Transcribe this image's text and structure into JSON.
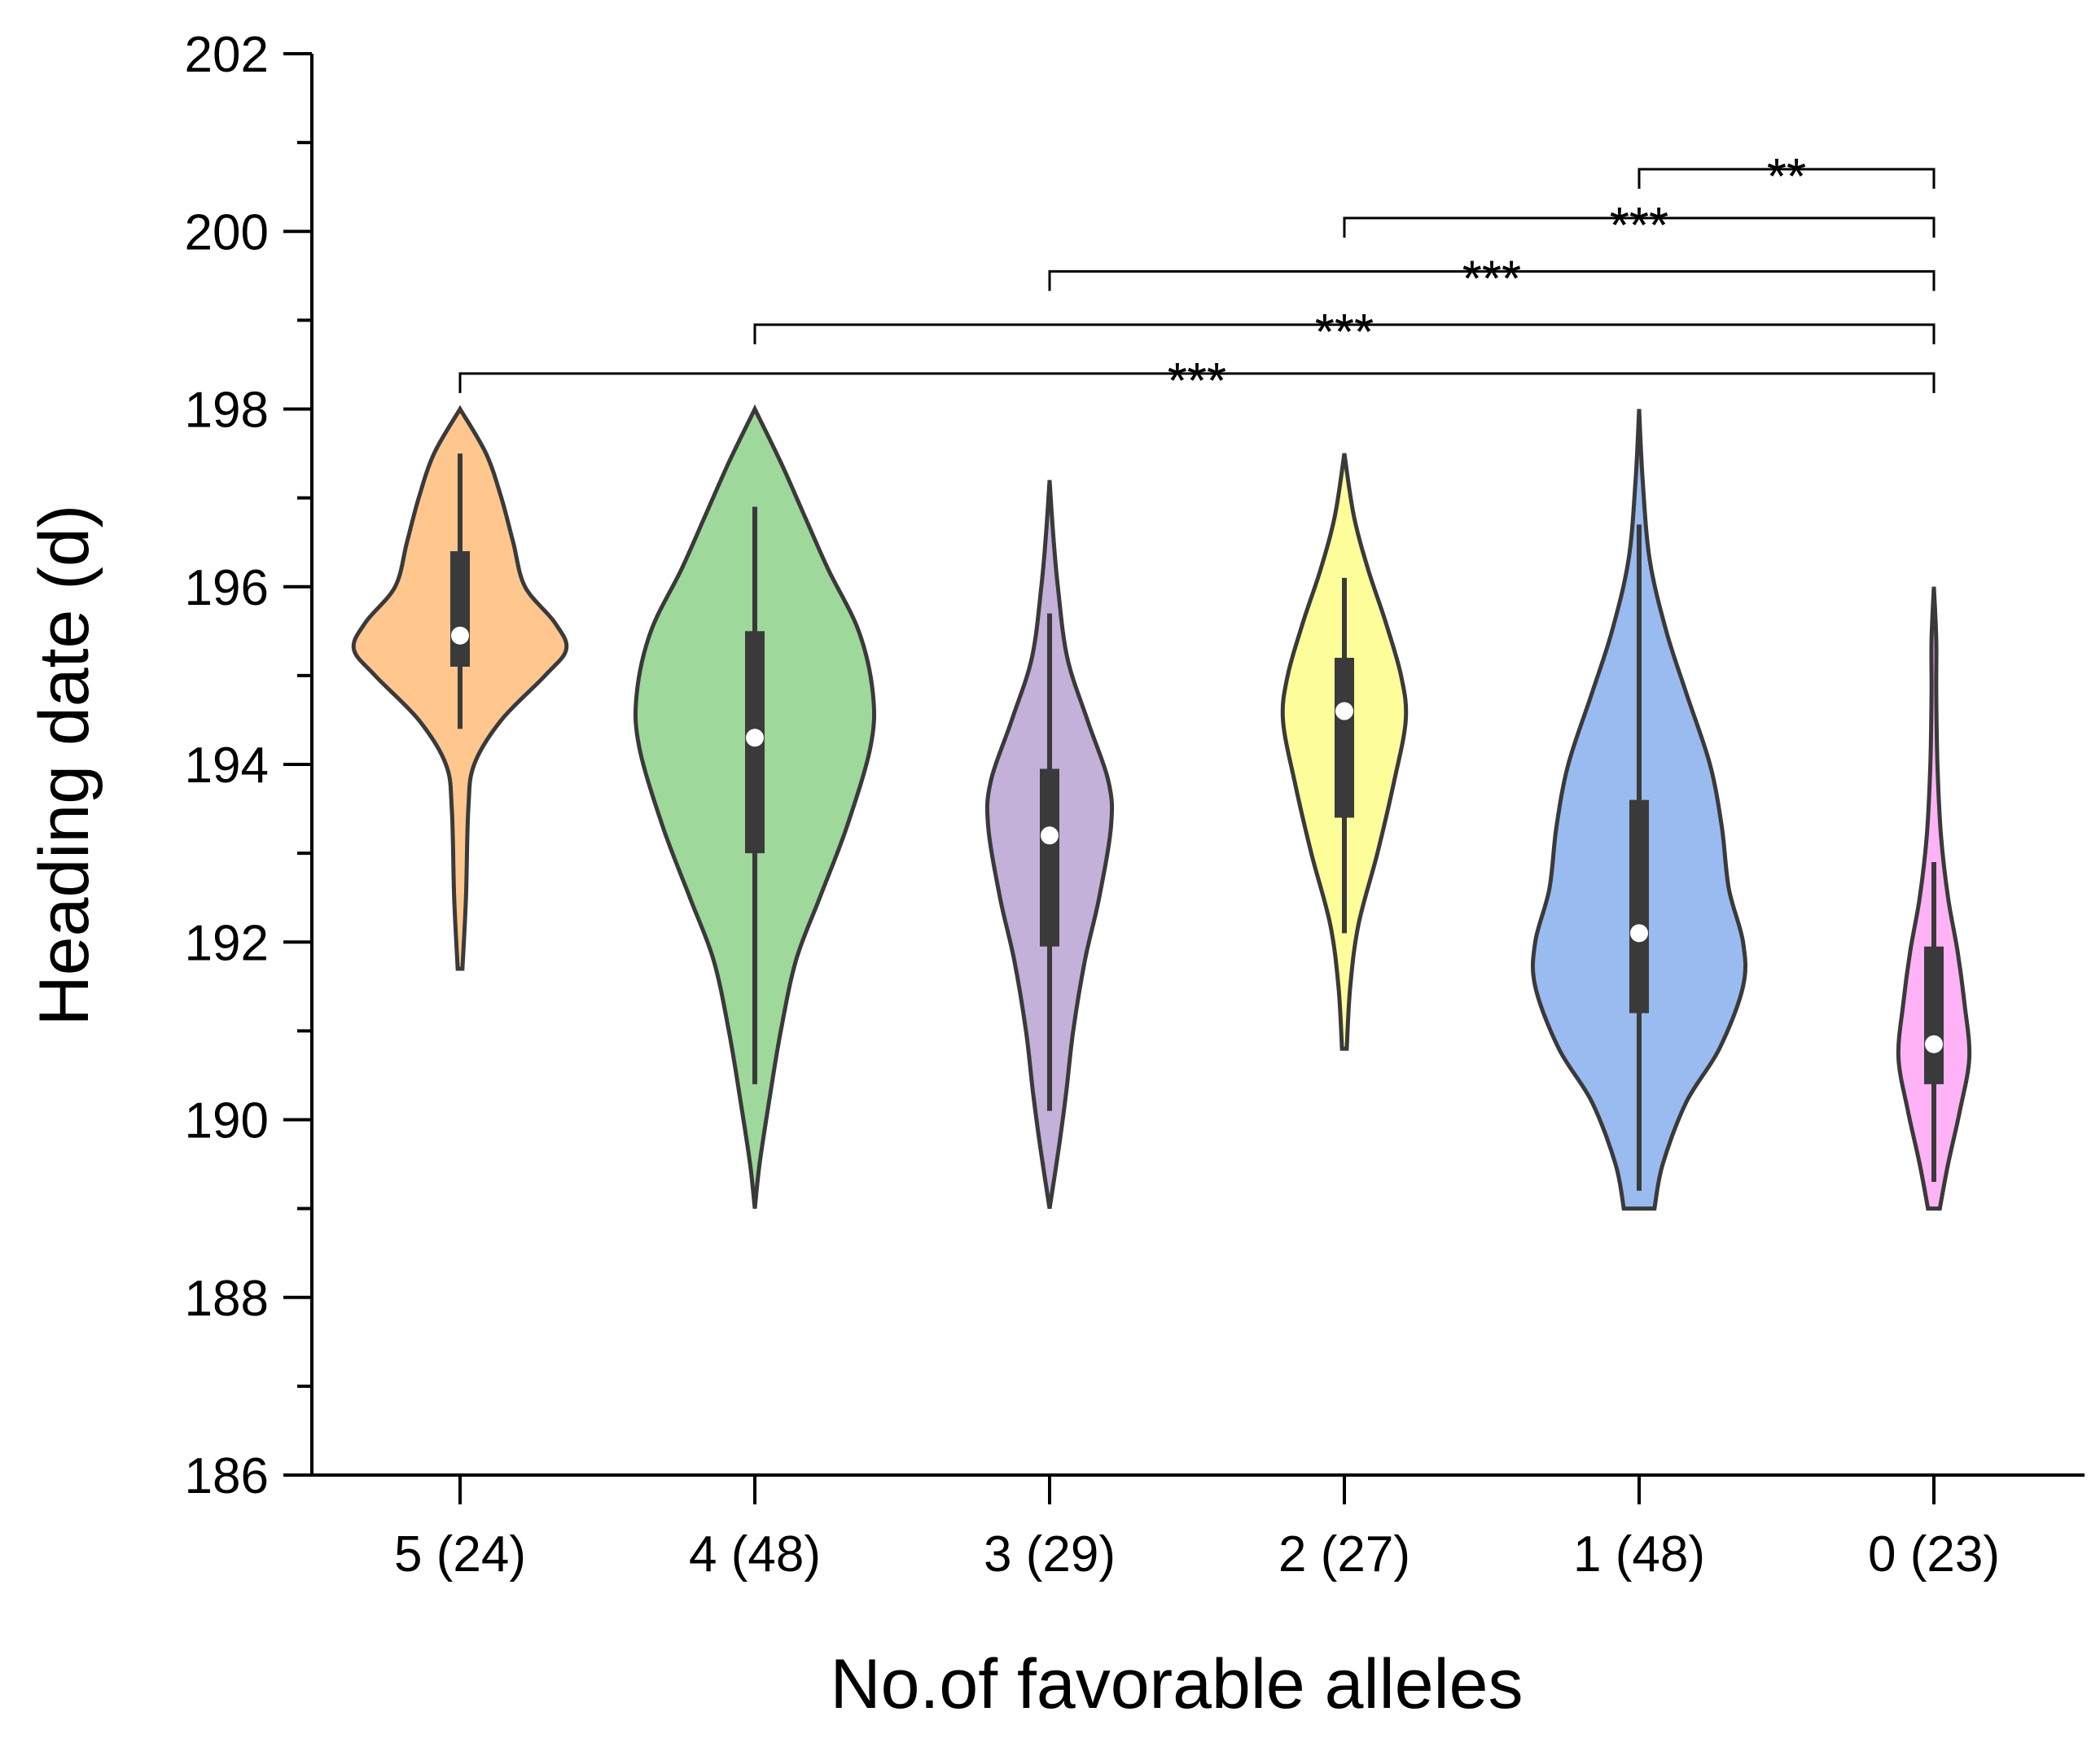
{
  "chart_data": {
    "type": "violin",
    "xlabel": "No.of favorable alleles",
    "ylabel": "Heading date (d)",
    "ylim": [
      186,
      202
    ],
    "yticks": [
      186,
      188,
      190,
      192,
      194,
      196,
      198,
      200,
      202
    ],
    "categories": [
      "5 (24)",
      "4 (48)",
      "3 (29)",
      "2 (27)",
      "1 (48)",
      "0 (23)"
    ],
    "series": [
      {
        "name": "5 (24)",
        "color": "#FFC78E",
        "min": 191.7,
        "max": 198.0,
        "whisker_low": 194.4,
        "whisker_high": 197.5,
        "q1": 195.1,
        "q3": 196.4,
        "median": 195.45,
        "density": [
          [
            191.7,
            0.02
          ],
          [
            192.5,
            0.05
          ],
          [
            193.5,
            0.07
          ],
          [
            194.0,
            0.12
          ],
          [
            194.5,
            0.35
          ],
          [
            195.0,
            0.72
          ],
          [
            195.3,
            0.9
          ],
          [
            195.6,
            0.8
          ],
          [
            196.0,
            0.55
          ],
          [
            196.5,
            0.45
          ],
          [
            197.0,
            0.35
          ],
          [
            197.5,
            0.22
          ],
          [
            198.0,
            0.0
          ]
        ]
      },
      {
        "name": "4 (48)",
        "color": "#9ED89A",
        "min": 189.0,
        "max": 198.0,
        "whisker_low": 190.4,
        "whisker_high": 196.9,
        "q1": 193.0,
        "q3": 195.5,
        "median": 194.3,
        "density": [
          [
            189.0,
            0.0
          ],
          [
            189.5,
            0.04
          ],
          [
            190.2,
            0.12
          ],
          [
            191.0,
            0.22
          ],
          [
            191.8,
            0.35
          ],
          [
            192.5,
            0.55
          ],
          [
            193.3,
            0.78
          ],
          [
            194.2,
            0.98
          ],
          [
            194.8,
            1.0
          ],
          [
            195.5,
            0.88
          ],
          [
            196.2,
            0.62
          ],
          [
            196.8,
            0.42
          ],
          [
            197.4,
            0.22
          ],
          [
            198.0,
            0.0
          ]
        ]
      },
      {
        "name": "3 (29)",
        "color": "#C3B1D9",
        "min": 189.0,
        "max": 197.2,
        "whisker_low": 190.1,
        "whisker_high": 195.7,
        "q1": 191.95,
        "q3": 193.95,
        "median": 193.2,
        "density": [
          [
            189.0,
            0.0
          ],
          [
            189.7,
            0.08
          ],
          [
            190.3,
            0.14
          ],
          [
            191.0,
            0.2
          ],
          [
            191.8,
            0.3
          ],
          [
            192.5,
            0.42
          ],
          [
            193.3,
            0.52
          ],
          [
            193.8,
            0.5
          ],
          [
            194.5,
            0.32
          ],
          [
            195.2,
            0.15
          ],
          [
            196.0,
            0.07
          ],
          [
            196.6,
            0.03
          ],
          [
            197.2,
            0.0
          ]
        ]
      },
      {
        "name": "2 (27)",
        "color": "#FDFD99",
        "min": 190.8,
        "max": 197.5,
        "whisker_low": 192.1,
        "whisker_high": 196.1,
        "q1": 193.4,
        "q3": 195.2,
        "median": 194.6,
        "density": [
          [
            190.8,
            0.02
          ],
          [
            191.5,
            0.05
          ],
          [
            192.2,
            0.12
          ],
          [
            193.0,
            0.28
          ],
          [
            193.8,
            0.42
          ],
          [
            194.5,
            0.52
          ],
          [
            195.0,
            0.48
          ],
          [
            195.6,
            0.35
          ],
          [
            196.2,
            0.2
          ],
          [
            196.8,
            0.08
          ],
          [
            197.5,
            0.0
          ]
        ]
      },
      {
        "name": "1 (48)",
        "color": "#99BBF0",
        "min": 189.0,
        "max": 198.0,
        "whisker_low": 189.2,
        "whisker_high": 196.7,
        "q1": 191.2,
        "q3": 193.6,
        "median": 192.1,
        "density": [
          [
            189.0,
            0.13
          ],
          [
            189.5,
            0.2
          ],
          [
            190.2,
            0.4
          ],
          [
            190.8,
            0.68
          ],
          [
            191.5,
            0.88
          ],
          [
            192.0,
            0.88
          ],
          [
            192.6,
            0.76
          ],
          [
            193.3,
            0.7
          ],
          [
            194.0,
            0.6
          ],
          [
            194.8,
            0.4
          ],
          [
            195.5,
            0.23
          ],
          [
            196.3,
            0.09
          ],
          [
            197.2,
            0.03
          ],
          [
            198.0,
            0.0
          ]
        ]
      },
      {
        "name": "0 (23)",
        "color": "#FFB3F6",
        "min": 189.0,
        "max": 196.0,
        "whisker_low": 189.3,
        "whisker_high": 192.9,
        "q1": 190.4,
        "q3": 191.95,
        "median": 190.85,
        "density": [
          [
            189.0,
            0.05
          ],
          [
            189.5,
            0.12
          ],
          [
            190.1,
            0.22
          ],
          [
            190.7,
            0.3
          ],
          [
            191.3,
            0.26
          ],
          [
            191.9,
            0.2
          ],
          [
            192.5,
            0.12
          ],
          [
            193.2,
            0.06
          ],
          [
            194.0,
            0.03
          ],
          [
            194.8,
            0.02
          ],
          [
            195.4,
            0.02
          ],
          [
            196.0,
            0.0
          ]
        ]
      }
    ],
    "comparisons": [
      {
        "from": "5 (24)",
        "to": "0 (23)",
        "label": "***",
        "y": 198.4
      },
      {
        "from": "4 (48)",
        "to": "0 (23)",
        "label": "***",
        "y": 198.95
      },
      {
        "from": "3 (29)",
        "to": "0 (23)",
        "label": "***",
        "y": 199.55
      },
      {
        "from": "2 (27)",
        "to": "0 (23)",
        "label": "***",
        "y": 200.15
      },
      {
        "from": "1 (48)",
        "to": "0 (23)",
        "label": "**",
        "y": 200.7
      }
    ]
  }
}
